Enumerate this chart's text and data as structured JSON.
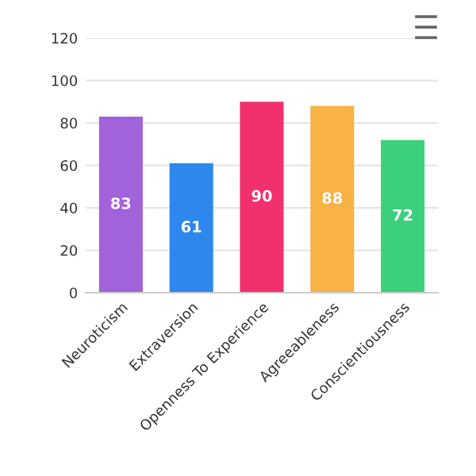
{
  "chart_data": {
    "type": "bar",
    "categories": [
      "Neuroticism",
      "Extraversion",
      "Openness To Experience",
      "Agreeableness",
      "Conscientiousness"
    ],
    "values": [
      83,
      61,
      90,
      88,
      72
    ],
    "colors": [
      "#a262d9",
      "#2d87ec",
      "#f2306e",
      "#f8b246",
      "#3dd07c"
    ],
    "ylim": [
      0,
      120
    ],
    "yticks": [
      0,
      20,
      40,
      60,
      80,
      100,
      120
    ],
    "grid": "y",
    "data_labels": true
  }
}
